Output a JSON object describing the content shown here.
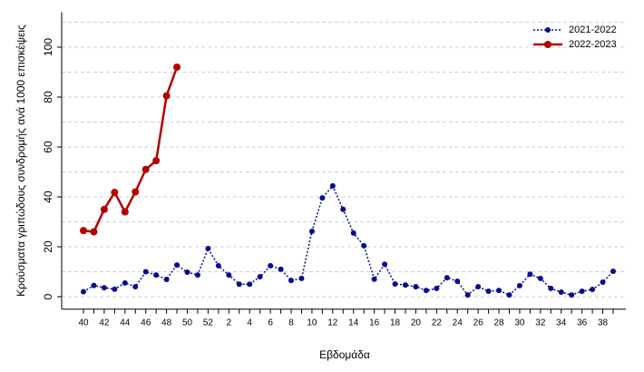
{
  "chart_data": {
    "type": "line",
    "xlabel": "Εβδομάδα",
    "ylabel": "Κρούσματα γριπώδους συνδρομής ανά 1000 επισκέψεις",
    "categories": [
      "40",
      null,
      "42",
      null,
      "44",
      null,
      "46",
      null,
      "48",
      null,
      "50",
      null,
      "52",
      null,
      "2",
      null,
      "4",
      null,
      "6",
      null,
      "8",
      null,
      "10",
      null,
      "12",
      null,
      "14",
      null,
      "16",
      null,
      "18",
      null,
      "20",
      null,
      "22",
      null,
      "24",
      null,
      "26",
      null,
      "28",
      null,
      "30",
      null,
      "32",
      null,
      "34",
      null,
      "36",
      null,
      "38",
      null
    ],
    "series": [
      {
        "name": "2021-2022",
        "color": "#0a0a8c",
        "dashed": true,
        "values": [
          2,
          4.5,
          3.6,
          3,
          5.5,
          4,
          10,
          8.7,
          6.9,
          12.7,
          9.8,
          8.7,
          19.3,
          12.4,
          8.7,
          5,
          5,
          8,
          12.4,
          11,
          6.5,
          7.3,
          26.2,
          39.6,
          44.4,
          35,
          25.5,
          20.4,
          7,
          13,
          5.1,
          4.7,
          4,
          2.5,
          3.3,
          7.6,
          6.2,
          0.7,
          4,
          2.2,
          2.5,
          0.7,
          4.4,
          9,
          7.3,
          3.3,
          1.8,
          0.7,
          2.2,
          2.9,
          5.8,
          10.2
        ]
      },
      {
        "name": "2022-2023",
        "color": "#b30000",
        "dashed": false,
        "values": [
          26.5,
          26,
          35,
          41.8,
          34,
          42,
          51,
          54.5,
          80.5,
          92,
          null,
          null,
          null,
          null,
          null,
          null,
          null,
          null,
          null,
          null,
          null,
          null,
          null,
          null,
          null,
          null,
          null,
          null,
          null,
          null,
          null,
          null,
          null,
          null,
          null,
          null,
          null,
          null,
          null,
          null,
          null,
          null,
          null,
          null,
          null,
          null,
          null,
          null,
          null,
          null,
          null,
          null
        ]
      }
    ],
    "ylim": [
      -5,
      114
    ],
    "yticks": [
      0,
      20,
      40,
      60,
      80,
      100
    ],
    "grid_lines": [
      0,
      10,
      20,
      30,
      40,
      50,
      60,
      70,
      80,
      90,
      100,
      110
    ],
    "grid": true,
    "legend": "top-right"
  }
}
